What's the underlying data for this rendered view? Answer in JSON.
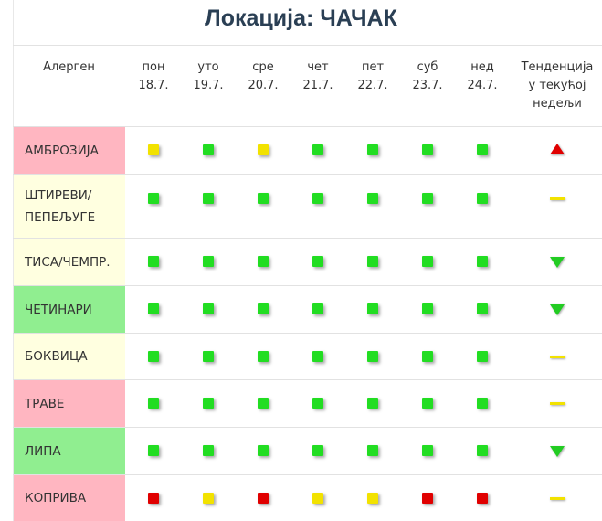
{
  "title": "Локација: ЧАЧАК",
  "header": {
    "allergen": "Алерген",
    "days": [
      {
        "day": "пон",
        "date": "18.7."
      },
      {
        "day": "уто",
        "date": "19.7."
      },
      {
        "day": "сре",
        "date": "20.7."
      },
      {
        "day": "чет",
        "date": "21.7."
      },
      {
        "day": "пет",
        "date": "22.7."
      },
      {
        "day": "суб",
        "date": "23.7."
      },
      {
        "day": "нед",
        "date": "24.7."
      }
    ],
    "trend": [
      "Тенденција",
      "у текућој",
      "недељи"
    ]
  },
  "rows": [
    {
      "name": "АМБРОЗИЈА",
      "background": "#ffb6c1",
      "levels": [
        "#f2e200",
        "#22dd22",
        "#f2e200",
        "#22dd22",
        "#22dd22",
        "#22dd22",
        "#22dd22"
      ],
      "trend": "up",
      "trend_color": "#e00000"
    },
    {
      "name": "ШТИРЕВИ/ ПЕПЕЉУГЕ",
      "background": "#ffffe0",
      "levels": [
        "#22dd22",
        "#22dd22",
        "#22dd22",
        "#22dd22",
        "#22dd22",
        "#22dd22",
        "#22dd22"
      ],
      "trend": "flat",
      "trend_color": "#f2e200"
    },
    {
      "name": "ТИСА/ЧЕМПР.",
      "background": "#ffffe0",
      "levels": [
        "#22dd22",
        "#22dd22",
        "#22dd22",
        "#22dd22",
        "#22dd22",
        "#22dd22",
        "#22dd22"
      ],
      "trend": "down",
      "trend_color": "#22cc22"
    },
    {
      "name": "ЧЕТИНАРИ",
      "background": "#90ee90",
      "levels": [
        "#22dd22",
        "#22dd22",
        "#22dd22",
        "#22dd22",
        "#22dd22",
        "#22dd22",
        "#22dd22"
      ],
      "trend": "down",
      "trend_color": "#22cc22"
    },
    {
      "name": "БОКВИЦА",
      "background": "#ffffe0",
      "levels": [
        "#22dd22",
        "#22dd22",
        "#22dd22",
        "#22dd22",
        "#22dd22",
        "#22dd22",
        "#22dd22"
      ],
      "trend": "flat",
      "trend_color": "#f2e200"
    },
    {
      "name": "ТРАВЕ",
      "background": "#ffb6c1",
      "levels": [
        "#22dd22",
        "#22dd22",
        "#22dd22",
        "#22dd22",
        "#22dd22",
        "#22dd22",
        "#22dd22"
      ],
      "trend": "flat",
      "trend_color": "#f2e200"
    },
    {
      "name": "ЛИПА",
      "background": "#90ee90",
      "levels": [
        "#22dd22",
        "#22dd22",
        "#22dd22",
        "#22dd22",
        "#22dd22",
        "#22dd22",
        "#22dd22"
      ],
      "trend": "down",
      "trend_color": "#22cc22"
    },
    {
      "name": "КОПРИВА",
      "background": "#ffb6c1",
      "levels": [
        "#e00000",
        "#f2e200",
        "#e00000",
        "#f2e200",
        "#f2e200",
        "#e00000",
        "#e00000"
      ],
      "trend": "flat",
      "trend_color": "#f2e200"
    }
  ]
}
